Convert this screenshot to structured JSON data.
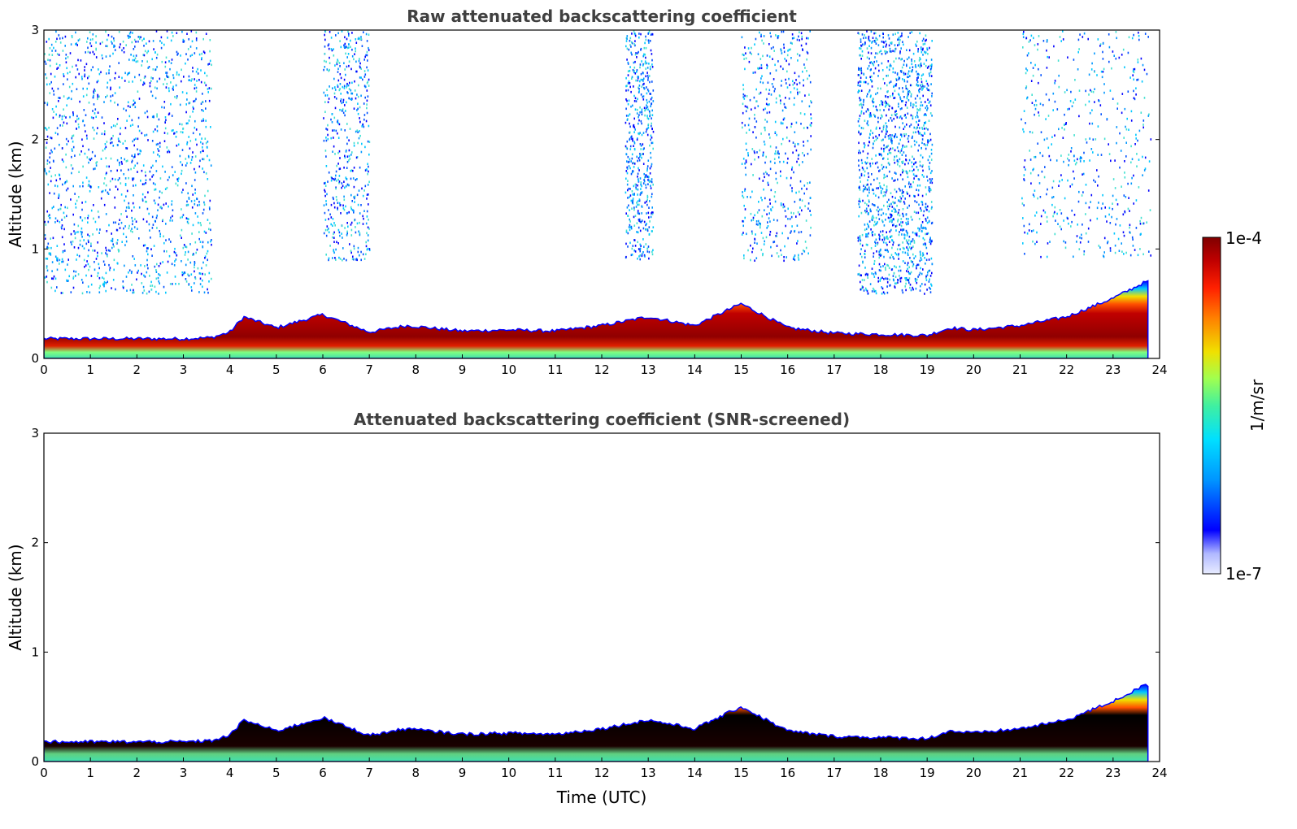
{
  "chart_data": [
    {
      "type": "heatmap",
      "title": "Raw attenuated backscattering coefficient",
      "xlabel": "",
      "ylabel": "Altitude (km)",
      "xlim": [
        0,
        24
      ],
      "ylim": [
        0,
        3
      ],
      "x_ticks": [
        "0",
        "1",
        "2",
        "3",
        "4",
        "5",
        "6",
        "7",
        "8",
        "9",
        "10",
        "11",
        "12",
        "13",
        "14",
        "15",
        "16",
        "17",
        "18",
        "19",
        "20",
        "21",
        "22",
        "23",
        "24"
      ],
      "y_ticks": [
        "0",
        "1",
        "2",
        "3"
      ],
      "boundary_layer_top_km": {
        "time_utc": [
          0,
          1,
          2,
          3,
          3.6,
          4,
          4.3,
          5,
          6,
          7,
          7.8,
          9,
          10,
          11,
          12,
          13,
          14,
          15,
          16,
          17,
          18,
          19,
          19.5,
          20,
          21,
          22,
          23,
          23.7
        ],
        "altitude": [
          0.18,
          0.18,
          0.18,
          0.18,
          0.19,
          0.24,
          0.38,
          0.28,
          0.4,
          0.24,
          0.3,
          0.25,
          0.26,
          0.25,
          0.3,
          0.38,
          0.3,
          0.5,
          0.28,
          0.23,
          0.22,
          0.21,
          0.28,
          0.26,
          0.3,
          0.38,
          0.55,
          0.7
        ]
      },
      "noise_regions_time_utc": [
        [
          0,
          3.6
        ],
        [
          6,
          7
        ],
        [
          12.5,
          13.1
        ],
        [
          15,
          16.5
        ],
        [
          17.5,
          19.1
        ],
        [
          21,
          23.8
        ]
      ]
    },
    {
      "type": "heatmap",
      "title": "Attenuated backscattering coefficient (SNR-screened)",
      "xlabel": "Time (UTC)",
      "ylabel": "Altitude (km)",
      "xlim": [
        0,
        24
      ],
      "ylim": [
        0,
        3
      ],
      "x_ticks": [
        "0",
        "1",
        "2",
        "3",
        "4",
        "5",
        "6",
        "7",
        "8",
        "9",
        "10",
        "11",
        "12",
        "13",
        "14",
        "15",
        "16",
        "17",
        "18",
        "19",
        "20",
        "21",
        "22",
        "23",
        "24"
      ],
      "y_ticks": [
        "0",
        "1",
        "2",
        "3"
      ],
      "boundary_layer_top_km": {
        "time_utc": [
          0,
          1,
          2,
          3,
          3.6,
          4,
          4.3,
          5,
          6,
          7,
          7.8,
          9,
          10,
          11,
          12,
          13,
          14,
          15,
          16,
          17,
          18,
          19,
          19.5,
          20,
          21,
          22,
          23,
          23.7
        ],
        "altitude": [
          0.18,
          0.18,
          0.18,
          0.18,
          0.19,
          0.24,
          0.38,
          0.28,
          0.4,
          0.24,
          0.3,
          0.25,
          0.26,
          0.25,
          0.3,
          0.38,
          0.3,
          0.5,
          0.28,
          0.23,
          0.22,
          0.21,
          0.28,
          0.26,
          0.3,
          0.38,
          0.55,
          0.7
        ]
      }
    }
  ],
  "colorbar": {
    "label": "1/m/sr",
    "max_label": "1e-4",
    "min_label": "1e-7",
    "scale": "log",
    "colors": [
      "#e8ecff",
      "#b0b8ff",
      "#0000ff",
      "#0096ff",
      "#00e0ff",
      "#40f0a0",
      "#a0ff50",
      "#f0e000",
      "#ff8000",
      "#ff2000",
      "#c00000",
      "#800000"
    ]
  }
}
